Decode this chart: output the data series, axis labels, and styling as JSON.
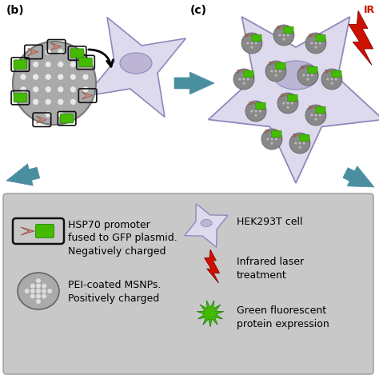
{
  "bg_color": "#ffffff",
  "legend_bg": "#c8c8c8",
  "cell_body_color": "#dcdaec",
  "cell_outline_color": "#9088bb",
  "cell_nucleus_color": "#bdb5d5",
  "arrow_color": "#4a8fa0",
  "label_b": "(b)",
  "label_c": "(c)",
  "ir_label": "IR",
  "ir_color": "#cc1100",
  "nano_gray": "#aaaaaa",
  "nano_dot": "#e0e0e0",
  "green_color": "#44bb00",
  "red_pink": "#cc8877",
  "legend_texts": [
    "HSP70 promoter\nfused to GFP plasmid.\nNegatively charged",
    "PEI-coated MSNPs.\nPositively charged",
    "HEK293T cell",
    "Infrared laser\ntreatment",
    "Green fluorescent\nprotein expression"
  ],
  "font_size_legend": 9.0
}
